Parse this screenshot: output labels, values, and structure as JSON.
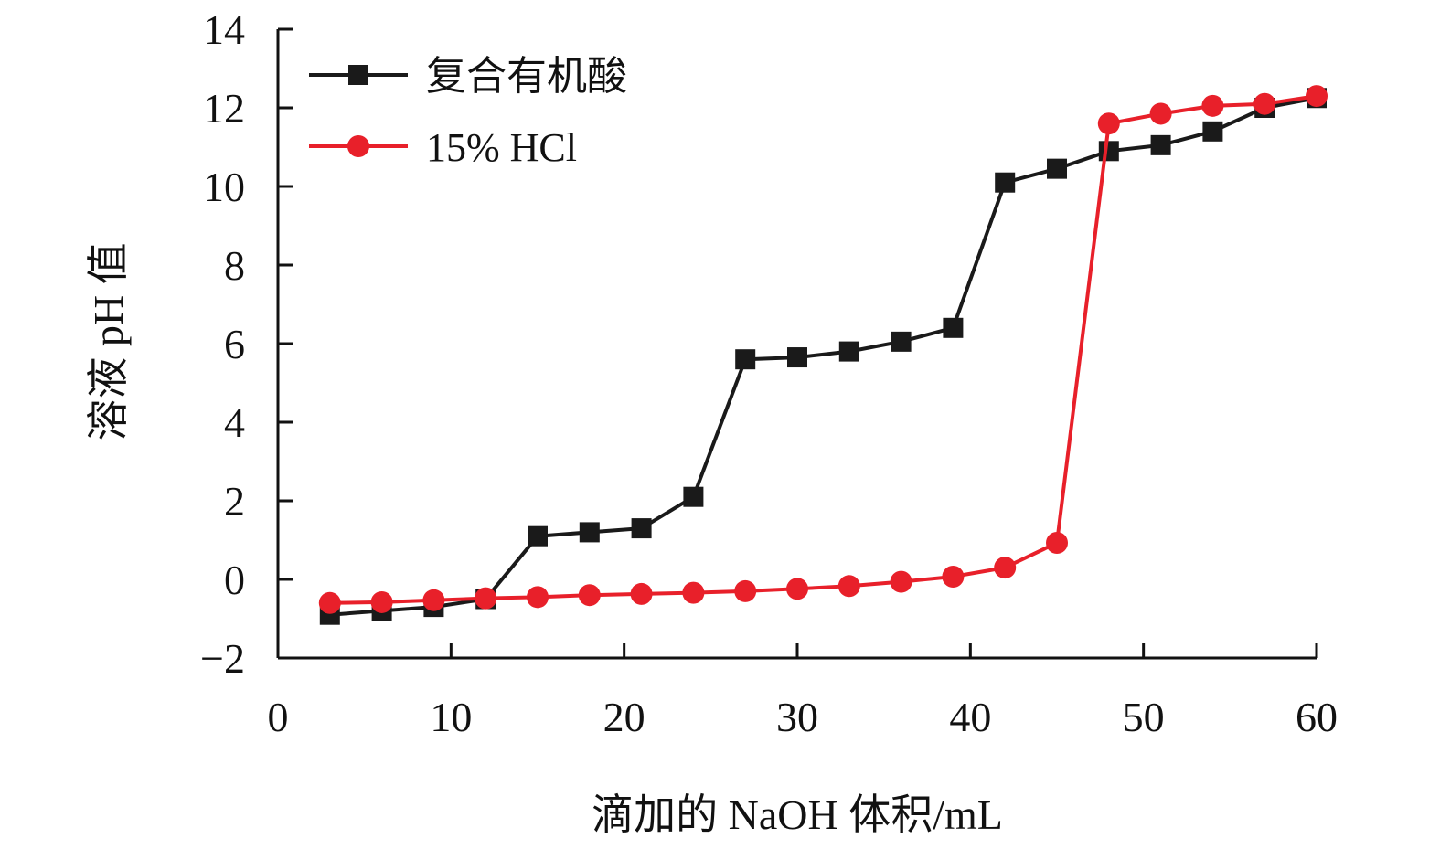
{
  "chart_data": {
    "type": "line",
    "xlabel": "滴加的 NaOH 体积/mL",
    "ylabel": "溶液 pH 值",
    "xlim": [
      0,
      60
    ],
    "ylim": [
      -2,
      14
    ],
    "xticks": [
      0,
      10,
      20,
      30,
      40,
      50,
      60
    ],
    "yticks": [
      -2,
      0,
      2,
      4,
      6,
      8,
      10,
      12,
      14
    ],
    "xtick_labels": [
      "0",
      "10",
      "20",
      "30",
      "40",
      "50",
      "60"
    ],
    "ytick_labels": [
      "−2",
      "0",
      "2",
      "4",
      "6",
      "8",
      "10",
      "12",
      "14"
    ],
    "grid": false,
    "legend": "top-left",
    "series": [
      {
        "name": "复合有机酸",
        "marker": "square",
        "color": "#1a1a1a",
        "x": [
          3,
          6,
          9,
          12,
          15,
          18,
          21,
          24,
          27,
          30,
          33,
          36,
          39,
          42,
          45,
          48,
          51,
          54,
          57,
          60
        ],
        "y": [
          -0.9,
          -0.8,
          -0.7,
          -0.5,
          1.1,
          1.2,
          1.3,
          2.1,
          5.6,
          5.65,
          5.8,
          6.05,
          6.4,
          10.1,
          10.45,
          10.9,
          11.05,
          11.4,
          12.0,
          12.25
        ]
      },
      {
        "name": "15% HCl",
        "marker": "circle",
        "color": "#e8202a",
        "x": [
          3,
          6,
          9,
          12,
          15,
          18,
          21,
          24,
          27,
          30,
          33,
          36,
          39,
          42,
          45,
          48,
          51,
          54,
          57,
          60
        ],
        "y": [
          -0.6,
          -0.58,
          -0.53,
          -0.48,
          -0.45,
          -0.4,
          -0.37,
          -0.34,
          -0.3,
          -0.24,
          -0.17,
          -0.06,
          0.07,
          0.3,
          0.93,
          11.6,
          11.85,
          12.05,
          12.1,
          12.3
        ]
      }
    ]
  }
}
